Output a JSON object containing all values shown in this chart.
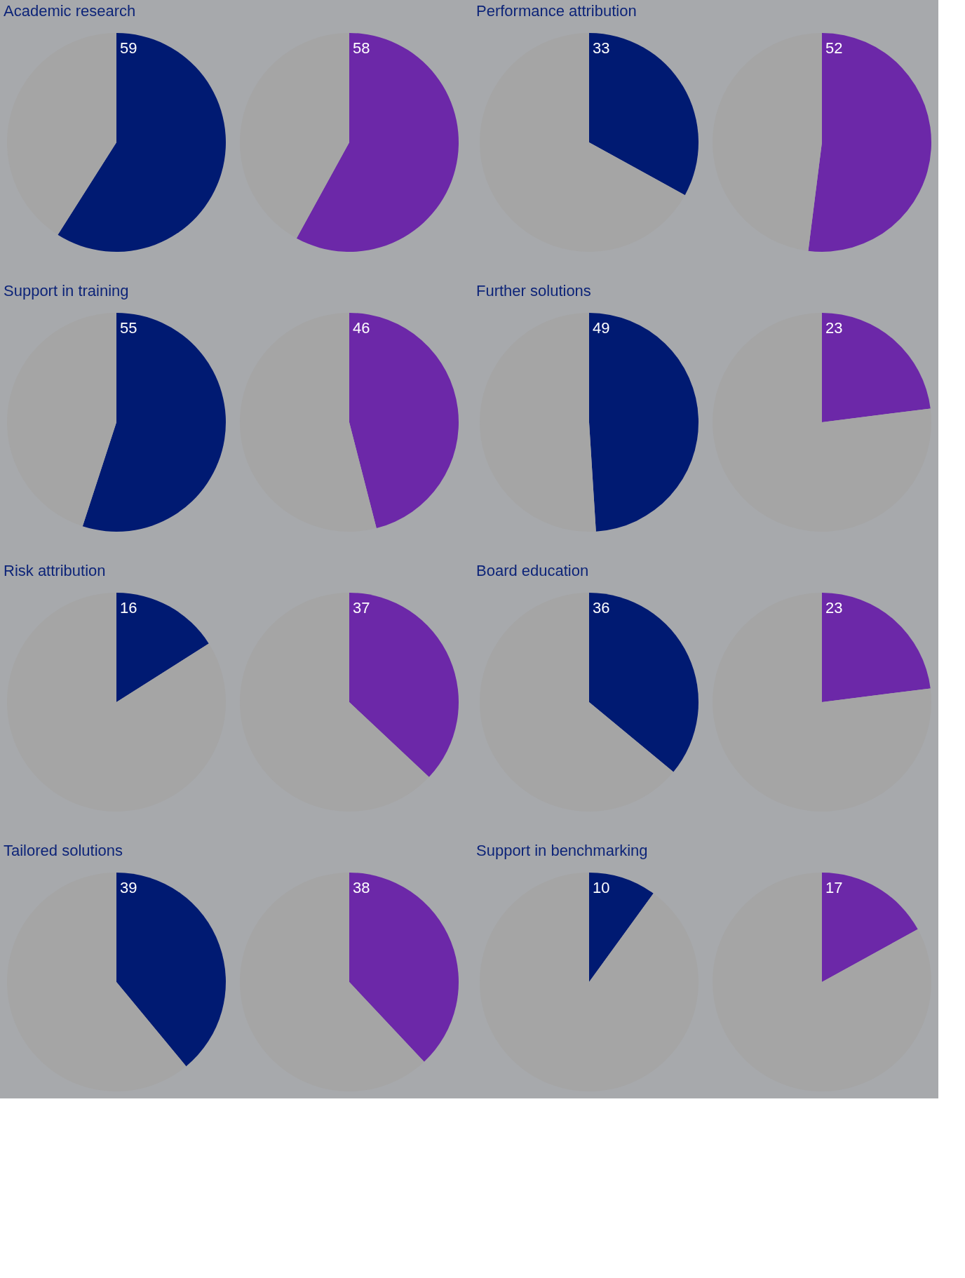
{
  "chart_data": [
    {
      "type": "pie",
      "title": "Academic research",
      "categories": [
        null,
        null
      ],
      "series": [
        {
          "colors": [
            "#001a72",
            "#a5a5a5"
          ],
          "values": [
            59,
            41
          ],
          "value_labels": [
            "59",
            null
          ]
        },
        {
          "colors": [
            "#6c28a8",
            "#a5a5a5"
          ],
          "values": [
            58,
            42
          ],
          "value_labels": [
            "58",
            null
          ]
        }
      ]
    },
    {
      "type": "pie",
      "title": "Performance attribution",
      "categories": [
        null,
        null
      ],
      "series": [
        {
          "colors": [
            "#001a72",
            "#a5a5a5"
          ],
          "values": [
            33,
            67
          ],
          "value_labels": [
            "33",
            null
          ]
        },
        {
          "colors": [
            "#6c28a8",
            "#a5a5a5"
          ],
          "values": [
            52,
            48
          ],
          "value_labels": [
            "52",
            null
          ]
        }
      ]
    },
    {
      "type": "pie",
      "title": "Support in training",
      "categories": [
        null,
        null
      ],
      "series": [
        {
          "colors": [
            "#001a72",
            "#a5a5a5"
          ],
          "values": [
            55,
            45
          ],
          "value_labels": [
            "55",
            null
          ]
        },
        {
          "colors": [
            "#6c28a8",
            "#a5a5a5"
          ],
          "values": [
            46,
            54
          ],
          "value_labels": [
            "46",
            null
          ]
        }
      ]
    },
    {
      "type": "pie",
      "title": "Further solutions",
      "categories": [
        null,
        null
      ],
      "series": [
        {
          "colors": [
            "#001a72",
            "#a5a5a5"
          ],
          "values": [
            49,
            51
          ],
          "value_labels": [
            "49",
            null
          ]
        },
        {
          "colors": [
            "#6c28a8",
            "#a5a5a5"
          ],
          "values": [
            23,
            77
          ],
          "value_labels": [
            "23",
            null
          ]
        }
      ]
    },
    {
      "type": "pie",
      "title": "Risk attribution",
      "categories": [
        null,
        null
      ],
      "series": [
        {
          "colors": [
            "#001a72",
            "#a5a5a5"
          ],
          "values": [
            16,
            84
          ],
          "value_labels": [
            "16",
            null
          ]
        },
        {
          "colors": [
            "#6c28a8",
            "#a5a5a5"
          ],
          "values": [
            37,
            63
          ],
          "value_labels": [
            "37",
            null
          ]
        }
      ]
    },
    {
      "type": "pie",
      "title": "Board education",
      "categories": [
        null,
        null
      ],
      "series": [
        {
          "colors": [
            "#001a72",
            "#a5a5a5"
          ],
          "values": [
            36,
            64
          ],
          "value_labels": [
            "36",
            null
          ]
        },
        {
          "colors": [
            "#6c28a8",
            "#a5a5a5"
          ],
          "values": [
            23,
            77
          ],
          "value_labels": [
            "23",
            null
          ]
        }
      ]
    },
    {
      "type": "pie",
      "title": "Tailored solutions",
      "categories": [
        null,
        null
      ],
      "series": [
        {
          "colors": [
            "#001a72",
            "#a5a5a5"
          ],
          "values": [
            39,
            61
          ],
          "value_labels": [
            "39",
            null
          ]
        },
        {
          "colors": [
            "#6c28a8",
            "#a5a5a5"
          ],
          "values": [
            38,
            62
          ],
          "value_labels": [
            "38",
            null
          ]
        }
      ]
    },
    {
      "type": "pie",
      "title": "Support in benchmarking",
      "categories": [
        null,
        null
      ],
      "series": [
        {
          "colors": [
            "#001a72",
            "#a5a5a5"
          ],
          "values": [
            10,
            90
          ],
          "value_labels": [
            "10",
            null
          ]
        },
        {
          "colors": [
            "#6c28a8",
            "#a5a5a5"
          ],
          "values": [
            17,
            83
          ],
          "value_labels": [
            "17",
            null
          ]
        }
      ]
    }
  ]
}
